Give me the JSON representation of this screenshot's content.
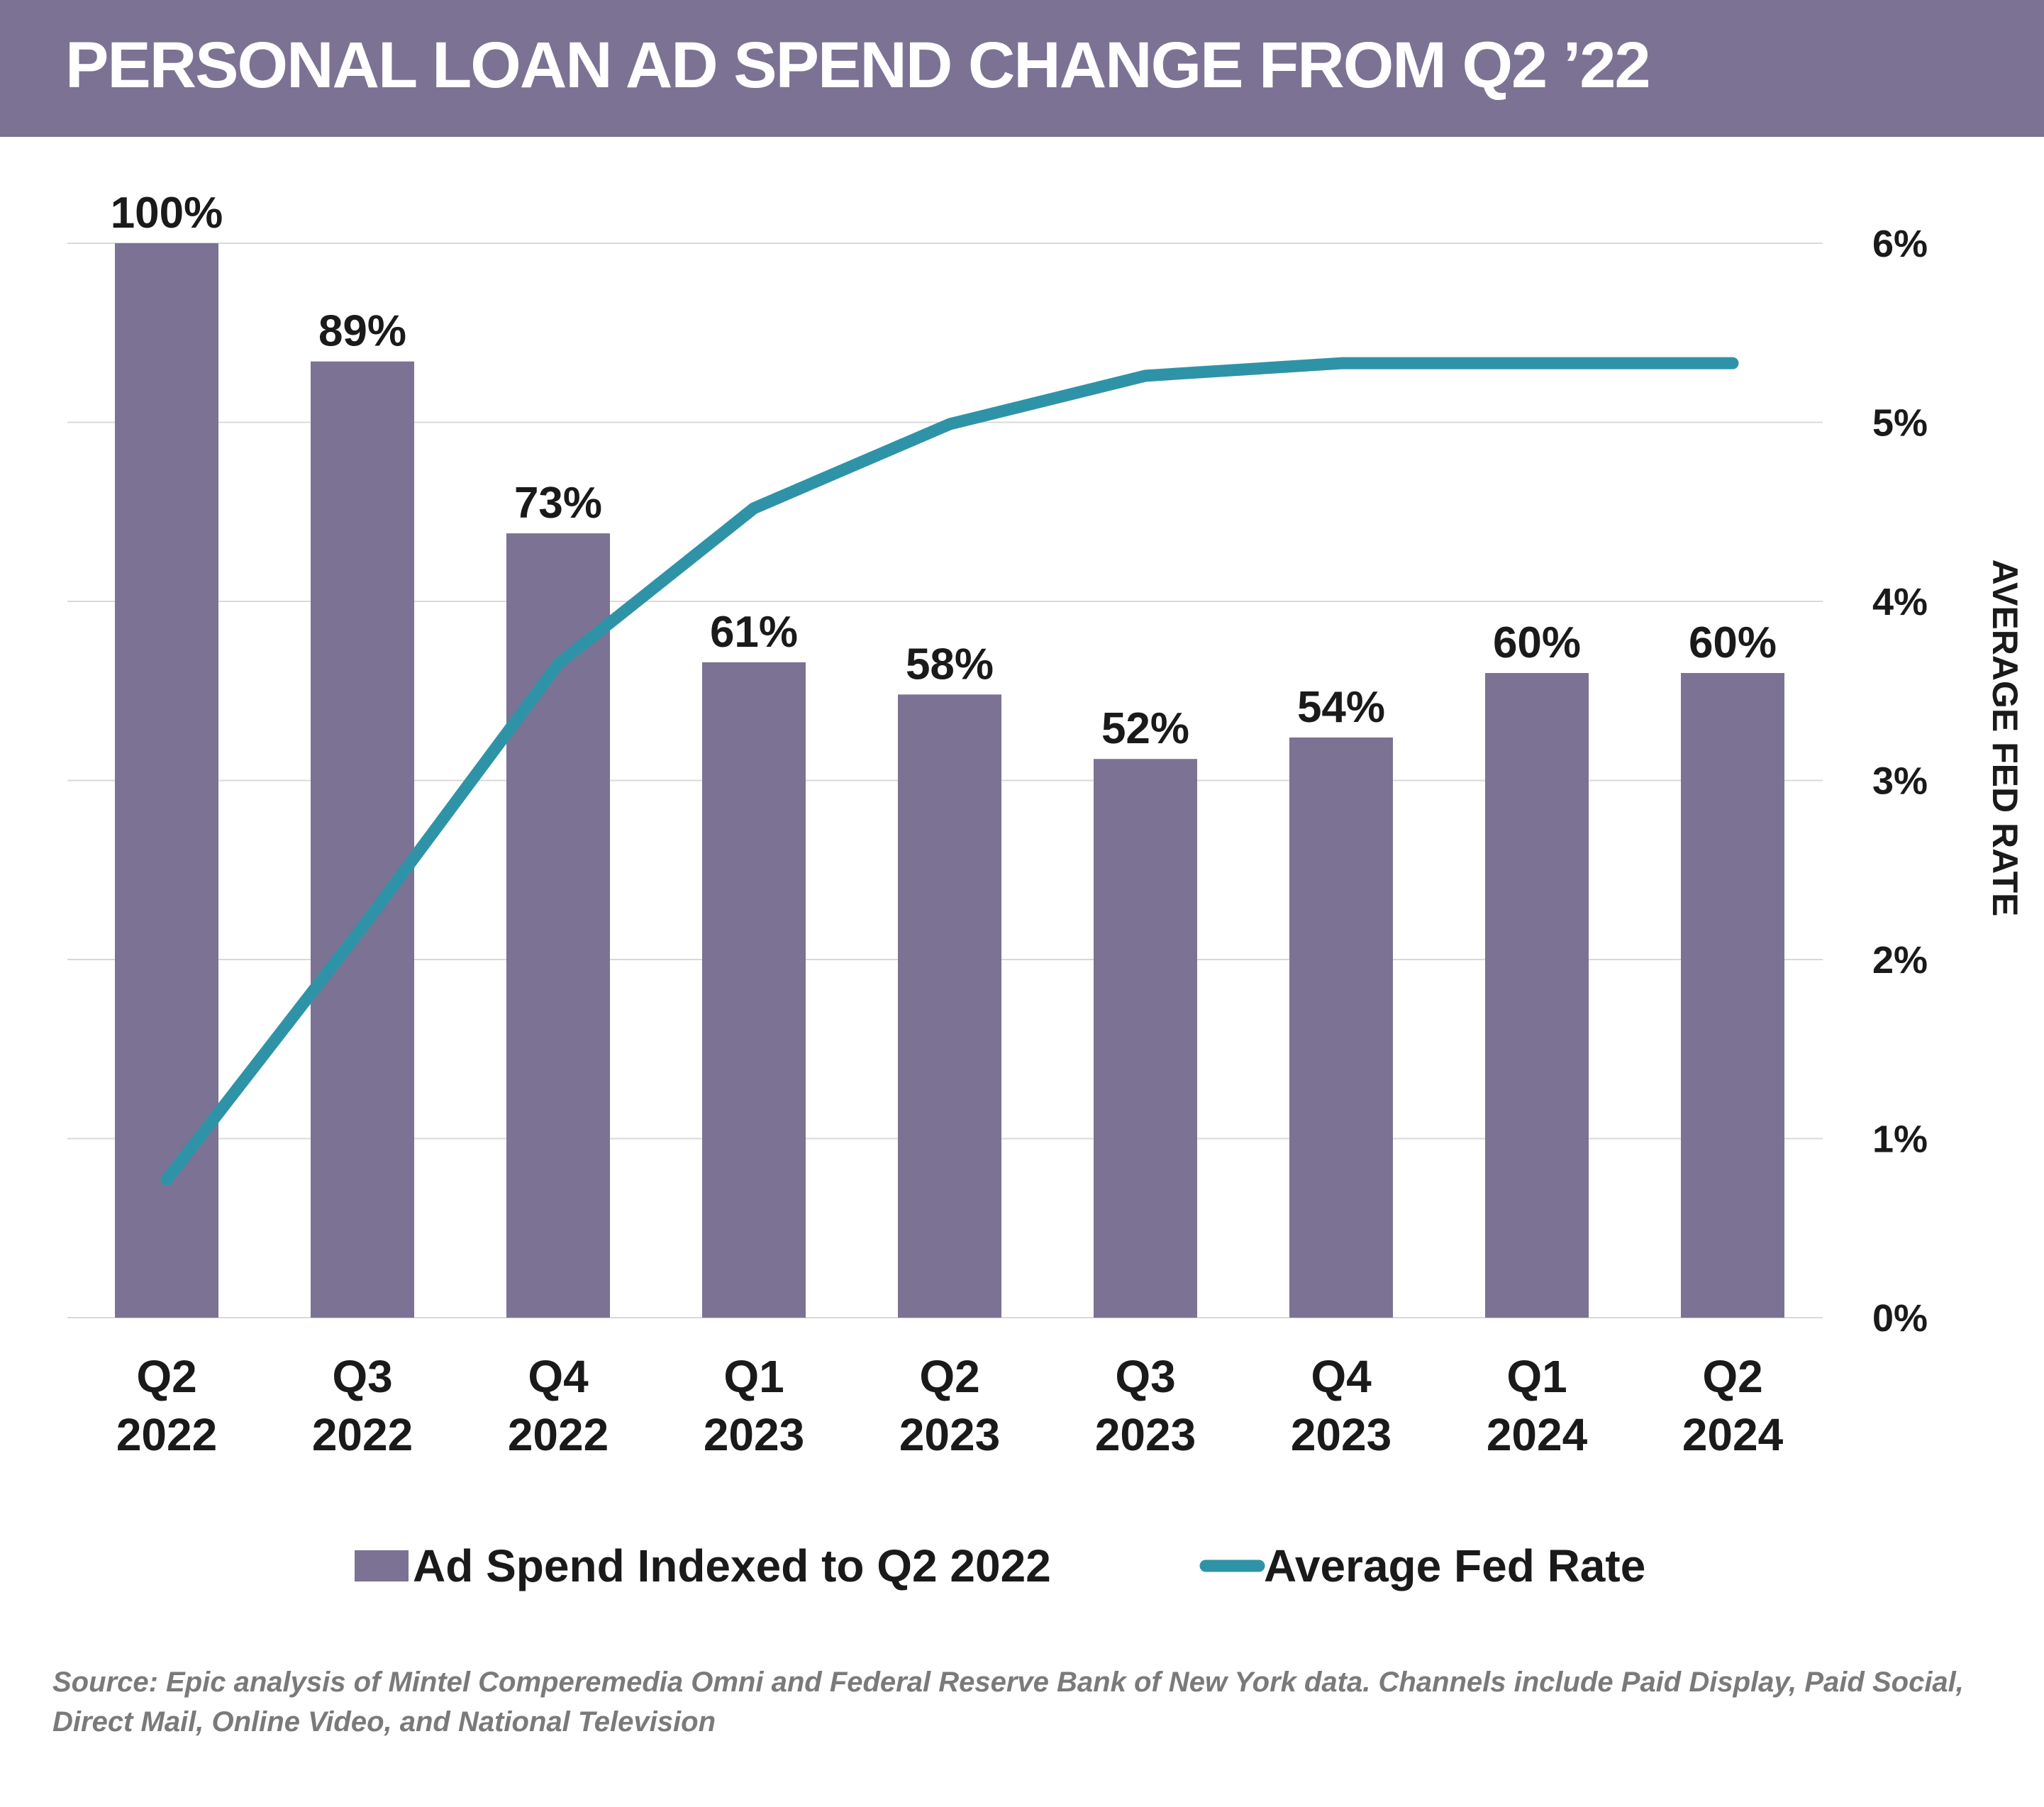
{
  "title": "PERSONAL LOAN AD SPEND CHANGE FROM Q2 ’22",
  "source": "Source: Epic analysis of Mintel Comperemedia Omni and Federal Reserve Bank of New York data. Channels include Paid Display, Paid Social, Direct Mail, Online Video, and National Television",
  "colors": {
    "bar": "#7c7294",
    "line": "#2f93a8",
    "title_band": "#7c7294",
    "grid": "#d9d9d9"
  },
  "chart_data": {
    "type": "bar",
    "categories": [
      [
        "Q2",
        "2022"
      ],
      [
        "Q3",
        "2022"
      ],
      [
        "Q4",
        "2022"
      ],
      [
        "Q1",
        "2023"
      ],
      [
        "Q2",
        "2023"
      ],
      [
        "Q3",
        "2023"
      ],
      [
        "Q4",
        "2023"
      ],
      [
        "Q1",
        "2024"
      ],
      [
        "Q2",
        "2024"
      ]
    ],
    "series": [
      {
        "name": "Ad Spend Indexed to Q2 2022",
        "type": "bar",
        "axis": "left",
        "values": [
          100,
          89,
          73,
          61,
          58,
          52,
          54,
          60,
          60
        ],
        "labels": [
          "100%",
          "89%",
          "73%",
          "61%",
          "58%",
          "52%",
          "54%",
          "60%",
          "60%"
        ]
      },
      {
        "name": "Average Fed Rate",
        "type": "line",
        "axis": "right",
        "values": [
          0.77,
          2.18,
          3.65,
          4.52,
          4.99,
          5.26,
          5.33,
          5.33,
          5.33
        ]
      }
    ],
    "y2label": "AVERAGE FED RATE",
    "y2ticks": [
      "0%",
      "1%",
      "2%",
      "3%",
      "4%",
      "5%",
      "6%"
    ],
    "y2lim": [
      0,
      6
    ],
    "grid": true,
    "legend": "bottom"
  }
}
